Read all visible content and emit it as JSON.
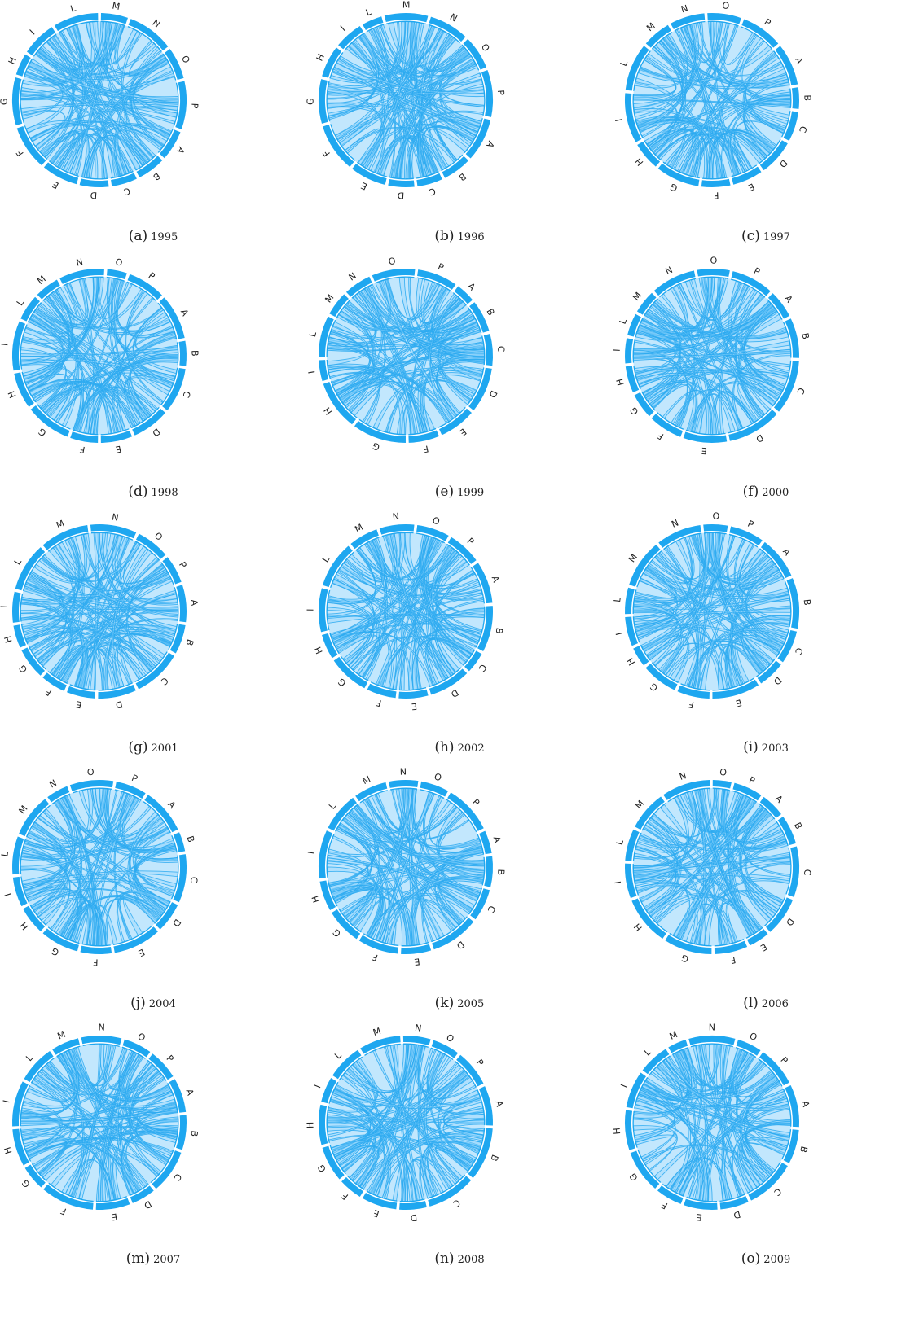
{
  "colors": {
    "ring": "#1ea7f0",
    "ribbon_fill": "#8fd3fb",
    "ribbon_stroke": "#2aa9f0"
  },
  "panels": [
    {
      "letter": "(a)",
      "year": "1995",
      "labels": [
        "L",
        "M",
        "N",
        "O",
        "P",
        "A",
        "B",
        "C",
        "D",
        "E",
        "F",
        "G",
        "H",
        "I"
      ]
    },
    {
      "letter": "(b)",
      "year": "1996",
      "labels": [
        "L",
        "M",
        "N",
        "O",
        "P",
        "A",
        "B",
        "C",
        "D",
        "E",
        "F",
        "G",
        "H",
        "I"
      ]
    },
    {
      "letter": "(c)",
      "year": "1997",
      "labels": [
        "N",
        "O",
        "P",
        "A",
        "B",
        "C",
        "D",
        "E",
        "F",
        "G",
        "H",
        "I",
        "L",
        "M"
      ]
    },
    {
      "letter": "(d)",
      "year": "1998",
      "labels": [
        "N",
        "O",
        "P",
        "A",
        "B",
        "C",
        "D",
        "E",
        "F",
        "G",
        "H",
        "I",
        "L",
        "M"
      ]
    },
    {
      "letter": "(e)",
      "year": "1999",
      "labels": [
        "N",
        "O",
        "P",
        "A",
        "B",
        "C",
        "D",
        "E",
        "F",
        "G",
        "H",
        "I",
        "L",
        "M"
      ]
    },
    {
      "letter": "(f)",
      "year": "2000",
      "labels": [
        "N",
        "O",
        "P",
        "A",
        "B",
        "C",
        "D",
        "E",
        "F",
        "G",
        "H",
        "I",
        "L",
        "M"
      ]
    },
    {
      "letter": "(g)",
      "year": "2001",
      "labels": [
        "M",
        "N",
        "O",
        "P",
        "A",
        "B",
        "C",
        "D",
        "E",
        "F",
        "G",
        "H",
        "I",
        "L"
      ]
    },
    {
      "letter": "(h)",
      "year": "2002",
      "labels": [
        "M",
        "N",
        "O",
        "P",
        "A",
        "B",
        "C",
        "D",
        "E",
        "F",
        "G",
        "H",
        "I",
        "L"
      ]
    },
    {
      "letter": "(i)",
      "year": "2003",
      "labels": [
        "N",
        "O",
        "P",
        "A",
        "B",
        "C",
        "D",
        "E",
        "F",
        "G",
        "H",
        "I",
        "L",
        "M"
      ]
    },
    {
      "letter": "(j)",
      "year": "2004",
      "labels": [
        "N",
        "O",
        "P",
        "A",
        "B",
        "C",
        "D",
        "E",
        "F",
        "G",
        "H",
        "I",
        "L",
        "M"
      ]
    },
    {
      "letter": "(k)",
      "year": "2005",
      "labels": [
        "M",
        "N",
        "O",
        "P",
        "A",
        "B",
        "C",
        "D",
        "E",
        "F",
        "G",
        "H",
        "I",
        "L"
      ]
    },
    {
      "letter": "(l)",
      "year": "2006",
      "labels": [
        "N",
        "O",
        "P",
        "A",
        "B",
        "C",
        "D",
        "E",
        "F",
        "G",
        "H",
        "I",
        "L",
        "M"
      ]
    },
    {
      "letter": "(m)",
      "year": "2007",
      "labels": [
        "M",
        "N",
        "O",
        "P",
        "A",
        "B",
        "C",
        "D",
        "E",
        "F",
        "G",
        "H",
        "I",
        "L"
      ]
    },
    {
      "letter": "(n)",
      "year": "2008",
      "labels": [
        "M",
        "N",
        "O",
        "P",
        "A",
        "B",
        "C",
        "D",
        "E",
        "F",
        "G",
        "H",
        "I",
        "L"
      ]
    },
    {
      "letter": "(o)",
      "year": "2009",
      "labels": [
        "M",
        "N",
        "O",
        "P",
        "A",
        "B",
        "C",
        "D",
        "E",
        "F",
        "G",
        "H",
        "I",
        "L"
      ]
    }
  ]
}
